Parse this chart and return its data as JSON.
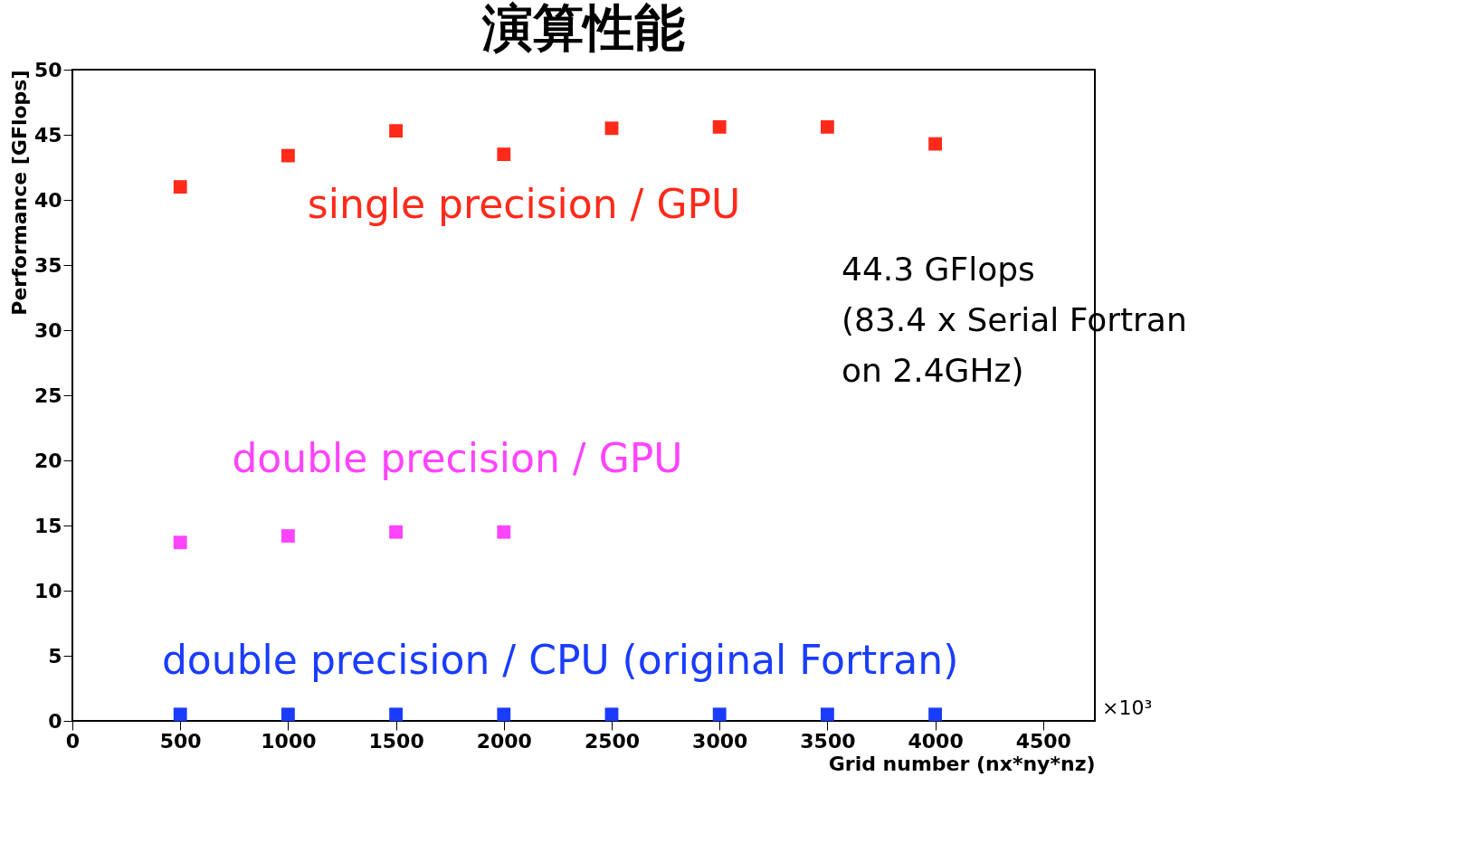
{
  "chart_data": {
    "type": "scatter",
    "title": "演算性能",
    "xlabel": "Grid number (nx*ny*nz)",
    "ylabel": "Performance [GFlops]",
    "x": [
      500,
      1000,
      1500,
      2000,
      2500,
      3000,
      3500,
      4000
    ],
    "series": [
      {
        "name": "single precision / GPU",
        "color": "#ff2a1a",
        "values": [
          41.0,
          43.4,
          45.3,
          43.5,
          45.5,
          45.6,
          45.6,
          44.3
        ]
      },
      {
        "name": "double precision / GPU",
        "color": "#ff44ff",
        "x": [
          500,
          1000,
          1500,
          2000
        ],
        "values": [
          13.7,
          14.2,
          14.5,
          14.5
        ]
      },
      {
        "name": "double precision / CPU (original Fortran)",
        "color": "#1a3cff",
        "values": [
          0.5,
          0.5,
          0.5,
          0.5,
          0.5,
          0.5,
          0.5,
          0.5
        ]
      }
    ],
    "annotations": [
      "×10³",
      "44.3 GFlops\n(83.4 x Serial Fortran\non 2.4GHz)"
    ],
    "xlim": [
      0,
      4740
    ],
    "xticks": [
      0,
      500,
      1000,
      1500,
      2000,
      2500,
      3000,
      3500,
      4000,
      4500
    ],
    "ylim": [
      0,
      50
    ],
    "yticks": [
      0,
      5,
      10,
      15,
      20,
      25,
      30,
      35,
      40,
      45,
      50
    ],
    "grid": false,
    "marker": "square"
  }
}
